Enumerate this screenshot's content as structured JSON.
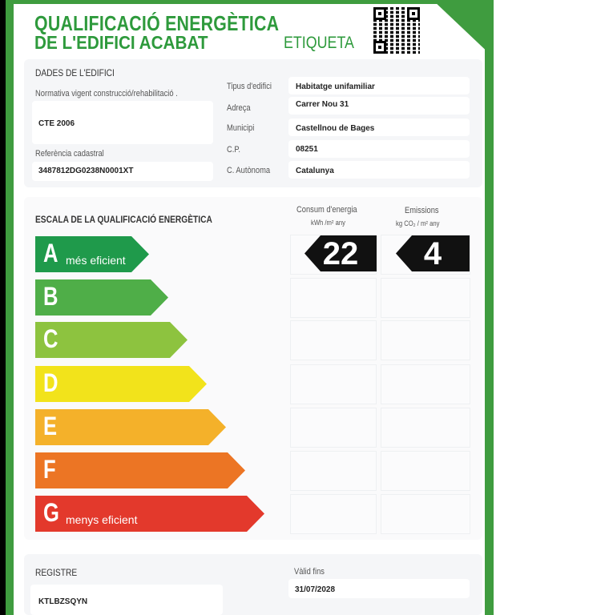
{
  "header": {
    "title_line1": "QUALIFICACIÓ ENERGÈTICA",
    "title_line2": "DE L'EDIFICI ACABAT",
    "label": "ETIQUETA",
    "qr_icon": "qr-code-icon"
  },
  "building": {
    "section_title": "DADES DE L'EDIFICI",
    "regulation_label": "Normativa vigent construcció/rehabilitació .",
    "regulation_value": "CTE 2006",
    "cadastral_label": "Referència cadastral",
    "cadastral_value": "3487812DG0238N0001XT",
    "fields": [
      {
        "label": "Tipus d'edifici",
        "value": "Habitatge unifamiliar"
      },
      {
        "label": "Adreça",
        "value": "Carrer Nou 31"
      },
      {
        "label": "Municipi",
        "value": "Castellnou de Bages"
      },
      {
        "label": "C.P.",
        "value": "08251"
      },
      {
        "label": "C. Autònoma",
        "value": "Catalunya"
      }
    ]
  },
  "scale": {
    "title": "ESCALA DE LA QUALIFICACIÓ ENERGÈTICA",
    "consumption_label": "Consum d'energia",
    "consumption_unit": "kWh /m² any",
    "emissions_label": "Emissions",
    "emissions_unit": "kg CO₂ / m² any",
    "consumption_value": "22",
    "emissions_value": "4",
    "rating": "A",
    "classes": [
      {
        "letter": "A",
        "note": "més eficient",
        "color": "#1f9a4b"
      },
      {
        "letter": "B",
        "note": "",
        "color": "#4fae48"
      },
      {
        "letter": "C",
        "note": "",
        "color": "#8dc33f"
      },
      {
        "letter": "D",
        "note": "",
        "color": "#f2e31b"
      },
      {
        "letter": "E",
        "note": "",
        "color": "#f4b12a"
      },
      {
        "letter": "F",
        "note": "",
        "color": "#ec7524"
      },
      {
        "letter": "G",
        "note": "menys eficient",
        "color": "#e3392c"
      }
    ]
  },
  "registry": {
    "label": "REGISTRE",
    "value": "KTLBZSQYN",
    "valid_label": "Vàlid fins",
    "valid_value": "31/07/2028"
  }
}
